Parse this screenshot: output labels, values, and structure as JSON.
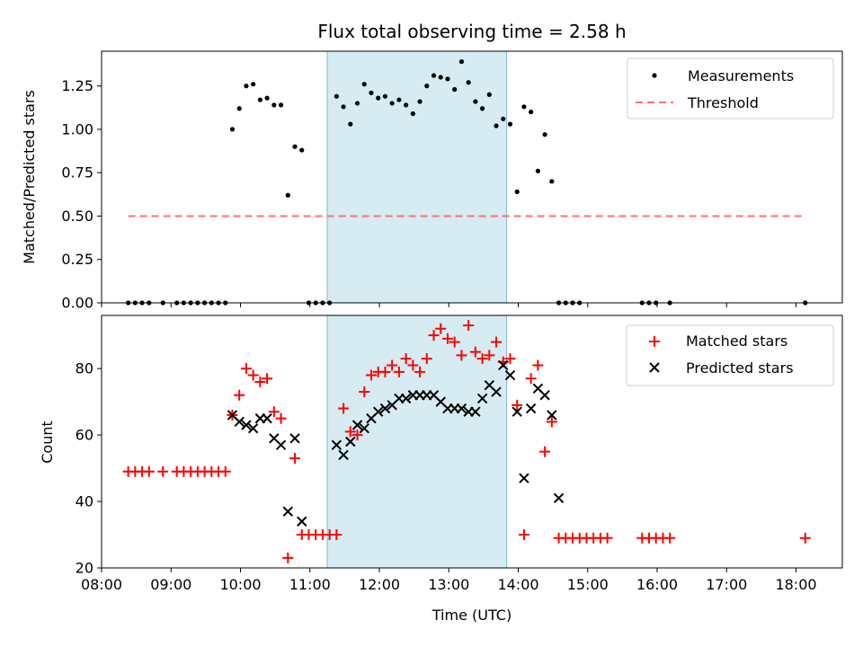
{
  "chart_data": [
    {
      "type": "scatter",
      "title": "Flux total observing time = 2.58 h",
      "ylabel": "Matched/Predicted stars",
      "xlabel": "",
      "xlim": [
        "08:00",
        "18:40"
      ],
      "ylim": [
        0,
        1.45
      ],
      "yticks": [
        "0.00",
        "0.25",
        "0.50",
        "0.75",
        "1.00",
        "1.25"
      ],
      "shaded_interval": [
        "11:15",
        "13:50"
      ],
      "legend": {
        "position": "top-right",
        "entries": [
          "Measurements",
          "Threshold"
        ]
      },
      "threshold": {
        "name": "Threshold",
        "value": 0.5,
        "x": [
          "08:23",
          "18:08"
        ],
        "color": "#ff6f6f"
      },
      "series": [
        {
          "name": "Measurements",
          "color": "#000000",
          "points": [
            [
              "08:23",
              0
            ],
            [
              "08:29",
              0
            ],
            [
              "08:35",
              0
            ],
            [
              "08:41",
              0
            ],
            [
              "08:53",
              0
            ],
            [
              "09:05",
              0
            ],
            [
              "09:11",
              0
            ],
            [
              "09:17",
              0
            ],
            [
              "09:23",
              0
            ],
            [
              "09:29",
              0
            ],
            [
              "09:35",
              0
            ],
            [
              "09:41",
              0
            ],
            [
              "09:47",
              0
            ],
            [
              "09:53",
              1.0
            ],
            [
              "09:59",
              1.12
            ],
            [
              "10:05",
              1.25
            ],
            [
              "10:11",
              1.26
            ],
            [
              "10:17",
              1.17
            ],
            [
              "10:23",
              1.18
            ],
            [
              "10:29",
              1.14
            ],
            [
              "10:35",
              1.14
            ],
            [
              "10:41",
              0.62
            ],
            [
              "10:47",
              0.9
            ],
            [
              "10:53",
              0.88
            ],
            [
              "10:59",
              0
            ],
            [
              "11:05",
              0
            ],
            [
              "11:11",
              0
            ],
            [
              "11:17",
              0
            ],
            [
              "11:23",
              1.19
            ],
            [
              "11:29",
              1.13
            ],
            [
              "11:35",
              1.03
            ],
            [
              "11:41",
              1.15
            ],
            [
              "11:47",
              1.26
            ],
            [
              "11:53",
              1.21
            ],
            [
              "11:59",
              1.18
            ],
            [
              "12:05",
              1.19
            ],
            [
              "12:11",
              1.15
            ],
            [
              "12:17",
              1.17
            ],
            [
              "12:23",
              1.14
            ],
            [
              "12:29",
              1.09
            ],
            [
              "12:35",
              1.16
            ],
            [
              "12:41",
              1.25
            ],
            [
              "12:47",
              1.31
            ],
            [
              "12:53",
              1.3
            ],
            [
              "12:59",
              1.29
            ],
            [
              "13:05",
              1.23
            ],
            [
              "13:11",
              1.39
            ],
            [
              "13:17",
              1.27
            ],
            [
              "13:23",
              1.16
            ],
            [
              "13:29",
              1.12
            ],
            [
              "13:35",
              1.2
            ],
            [
              "13:41",
              1.02
            ],
            [
              "13:47",
              1.06
            ],
            [
              "13:53",
              1.03
            ],
            [
              "13:59",
              0.64
            ],
            [
              "14:05",
              1.13
            ],
            [
              "14:11",
              1.1
            ],
            [
              "14:17",
              0.76
            ],
            [
              "14:23",
              0.97
            ],
            [
              "14:29",
              0.7
            ],
            [
              "14:35",
              0
            ],
            [
              "14:41",
              0
            ],
            [
              "14:47",
              0
            ],
            [
              "14:53",
              0
            ],
            [
              "15:47",
              0
            ],
            [
              "15:53",
              0
            ],
            [
              "15:59",
              0
            ],
            [
              "16:11",
              0
            ],
            [
              "18:08",
              0
            ]
          ]
        }
      ]
    },
    {
      "type": "scatter",
      "title": "",
      "ylabel": "Count",
      "xlabel": "Time (UTC)",
      "xlim": [
        "08:00",
        "18:40"
      ],
      "ylim": [
        20,
        96
      ],
      "yticks": [
        "20",
        "40",
        "60",
        "80"
      ],
      "xticks": [
        "08:00",
        "09:00",
        "10:00",
        "11:00",
        "12:00",
        "13:00",
        "14:00",
        "15:00",
        "16:00",
        "17:00",
        "18:00"
      ],
      "shaded_interval": [
        "11:15",
        "13:50"
      ],
      "legend": {
        "position": "top-right",
        "entries": [
          "Matched stars",
          "Predicted stars"
        ]
      },
      "series": [
        {
          "name": "Matched stars",
          "color": "#ff0000",
          "marker": "plus",
          "points": [
            [
              "08:23",
              49
            ],
            [
              "08:29",
              49
            ],
            [
              "08:35",
              49
            ],
            [
              "08:41",
              49
            ],
            [
              "08:53",
              49
            ],
            [
              "09:05",
              49
            ],
            [
              "09:11",
              49
            ],
            [
              "09:17",
              49
            ],
            [
              "09:23",
              49
            ],
            [
              "09:29",
              49
            ],
            [
              "09:35",
              49
            ],
            [
              "09:41",
              49
            ],
            [
              "09:47",
              49
            ],
            [
              "09:53",
              66
            ],
            [
              "09:59",
              72
            ],
            [
              "10:05",
              80
            ],
            [
              "10:11",
              78
            ],
            [
              "10:17",
              76
            ],
            [
              "10:23",
              77
            ],
            [
              "10:29",
              67
            ],
            [
              "10:35",
              65
            ],
            [
              "10:41",
              23
            ],
            [
              "10:47",
              53
            ],
            [
              "10:53",
              30
            ],
            [
              "10:59",
              30
            ],
            [
              "11:05",
              30
            ],
            [
              "11:11",
              30
            ],
            [
              "11:17",
              30
            ],
            [
              "11:23",
              30
            ],
            [
              "11:29",
              68
            ],
            [
              "11:35",
              61
            ],
            [
              "11:41",
              60
            ],
            [
              "11:47",
              73
            ],
            [
              "11:53",
              78
            ],
            [
              "11:59",
              79
            ],
            [
              "12:05",
              79
            ],
            [
              "12:11",
              81
            ],
            [
              "12:17",
              79
            ],
            [
              "12:23",
              83
            ],
            [
              "12:29",
              81
            ],
            [
              "12:35",
              79
            ],
            [
              "12:41",
              83
            ],
            [
              "12:47",
              90
            ],
            [
              "12:53",
              92
            ],
            [
              "12:59",
              89
            ],
            [
              "13:05",
              88
            ],
            [
              "13:11",
              84
            ],
            [
              "13:17",
              93
            ],
            [
              "13:23",
              85
            ],
            [
              "13:29",
              83
            ],
            [
              "13:35",
              84
            ],
            [
              "13:41",
              88
            ],
            [
              "13:47",
              82
            ],
            [
              "13:53",
              83
            ],
            [
              "13:59",
              69
            ],
            [
              "14:05",
              30
            ],
            [
              "14:11",
              77
            ],
            [
              "14:17",
              81
            ],
            [
              "14:23",
              55
            ],
            [
              "14:29",
              64
            ],
            [
              "14:35",
              29
            ],
            [
              "14:41",
              29
            ],
            [
              "14:47",
              29
            ],
            [
              "14:53",
              29
            ],
            [
              "14:59",
              29
            ],
            [
              "15:05",
              29
            ],
            [
              "15:11",
              29
            ],
            [
              "15:17",
              29
            ],
            [
              "15:47",
              29
            ],
            [
              "15:53",
              29
            ],
            [
              "15:59",
              29
            ],
            [
              "16:05",
              29
            ],
            [
              "16:11",
              29
            ],
            [
              "18:08",
              29
            ]
          ]
        },
        {
          "name": "Predicted stars",
          "color": "#000000",
          "marker": "x",
          "points": [
            [
              "09:53",
              66
            ],
            [
              "09:59",
              64
            ],
            [
              "10:05",
              63
            ],
            [
              "10:11",
              62
            ],
            [
              "10:17",
              65
            ],
            [
              "10:23",
              65
            ],
            [
              "10:29",
              59
            ],
            [
              "10:35",
              57
            ],
            [
              "10:41",
              37
            ],
            [
              "10:47",
              59
            ],
            [
              "10:53",
              34
            ],
            [
              "11:23",
              57
            ],
            [
              "11:29",
              54
            ],
            [
              "11:35",
              58
            ],
            [
              "11:41",
              63
            ],
            [
              "11:47",
              62
            ],
            [
              "11:53",
              65
            ],
            [
              "11:59",
              67
            ],
            [
              "12:05",
              68
            ],
            [
              "12:11",
              69
            ],
            [
              "12:17",
              71
            ],
            [
              "12:23",
              71
            ],
            [
              "12:29",
              72
            ],
            [
              "12:35",
              72
            ],
            [
              "12:41",
              72
            ],
            [
              "12:47",
              72
            ],
            [
              "12:53",
              70
            ],
            [
              "12:59",
              68
            ],
            [
              "13:05",
              68
            ],
            [
              "13:11",
              68
            ],
            [
              "13:17",
              67
            ],
            [
              "13:23",
              67
            ],
            [
              "13:29",
              71
            ],
            [
              "13:35",
              75
            ],
            [
              "13:41",
              73
            ],
            [
              "13:47",
              81
            ],
            [
              "13:53",
              78
            ],
            [
              "13:59",
              67
            ],
            [
              "14:05",
              47
            ],
            [
              "14:11",
              68
            ],
            [
              "14:17",
              74
            ],
            [
              "14:23",
              72
            ],
            [
              "14:29",
              66
            ],
            [
              "14:35",
              41
            ]
          ]
        }
      ]
    }
  ]
}
